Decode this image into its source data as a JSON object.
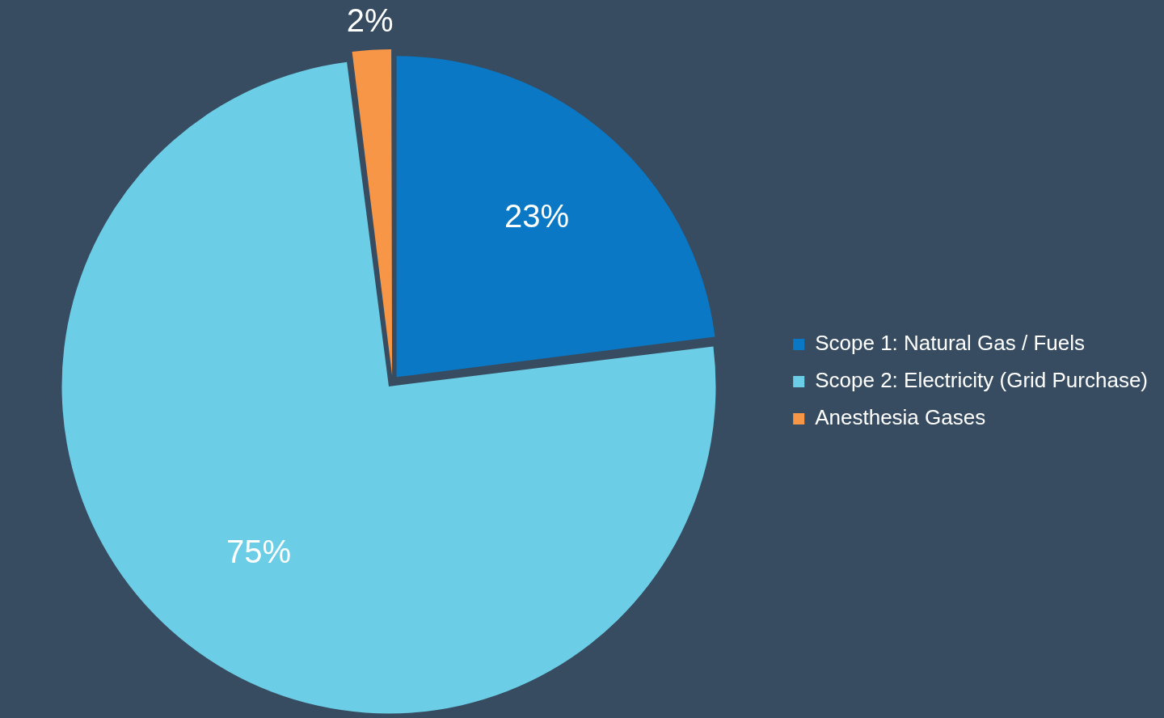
{
  "chart_data": {
    "type": "pie",
    "categories": [
      "Scope 1: Natural Gas / Fuels",
      "Scope 2: Electricity (Grid Purchase)",
      "Anesthesia Gases"
    ],
    "values": [
      23,
      75,
      2
    ],
    "colors": [
      "#0a78c4",
      "#6ccde6",
      "#f79646"
    ],
    "value_labels": [
      "23%",
      "75%",
      "2%"
    ],
    "legend": "right"
  }
}
